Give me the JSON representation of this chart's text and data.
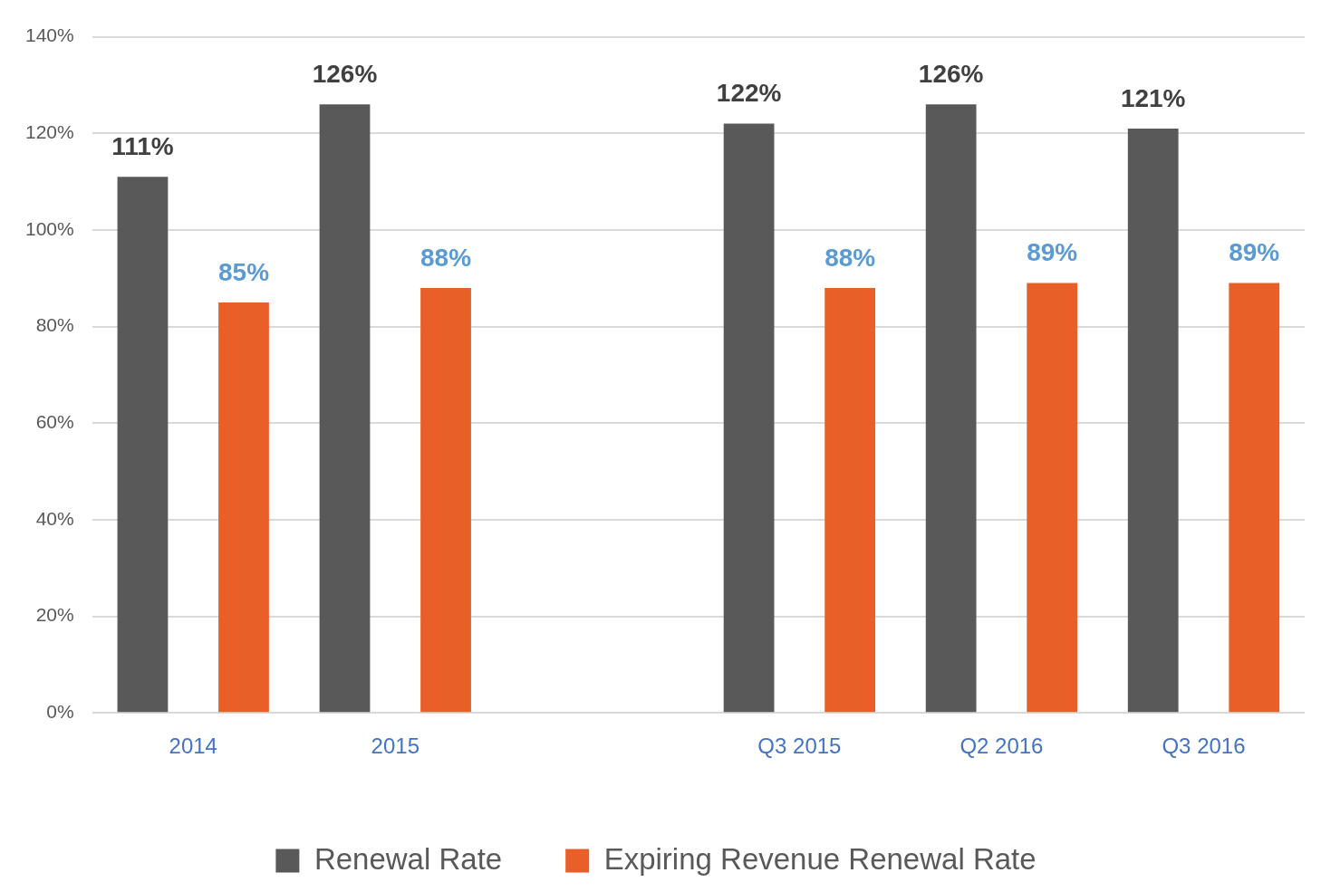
{
  "chart_data": {
    "type": "bar",
    "categories": [
      "2014",
      "2015",
      null,
      "Q3 2015",
      "Q2 2016",
      "Q3 2016"
    ],
    "series": [
      {
        "name": "Renewal Rate",
        "color": "#595959",
        "values": [
          111,
          126,
          null,
          122,
          126,
          121
        ],
        "value_labels": [
          "111%",
          "126%",
          null,
          "122%",
          "126%",
          "121%"
        ]
      },
      {
        "name": "Expiring Revenue Renewal Rate",
        "color": "#e95f28",
        "values": [
          85,
          88,
          null,
          88,
          89,
          89
        ],
        "value_labels": [
          "85%",
          "88%",
          null,
          "88%",
          "89%",
          "89%"
        ]
      }
    ],
    "ylim": [
      0,
      140
    ],
    "yticks": [
      {
        "value": 0,
        "label": "0%"
      },
      {
        "value": 20,
        "label": "20%"
      },
      {
        "value": 40,
        "label": "40%"
      },
      {
        "value": 60,
        "label": "60%"
      },
      {
        "value": 80,
        "label": "80%"
      },
      {
        "value": 100,
        "label": "100%"
      },
      {
        "value": 120,
        "label": "120%"
      },
      {
        "value": 140,
        "label": "140%"
      }
    ],
    "grid": "y",
    "legend": "bottom"
  }
}
